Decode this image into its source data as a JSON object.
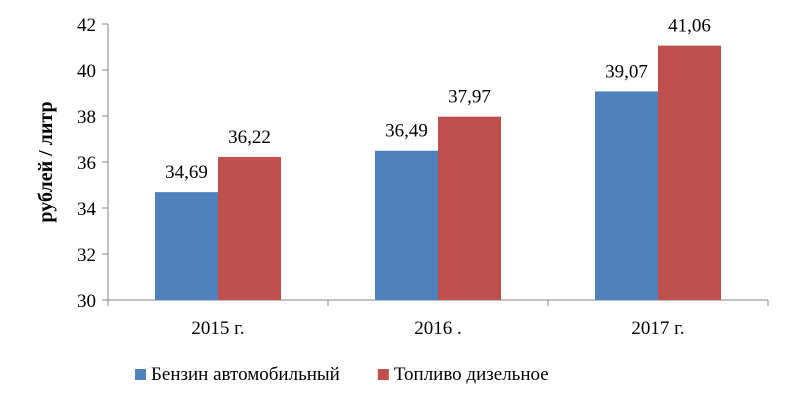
{
  "chart_data": {
    "type": "bar",
    "categories": [
      "2015 г.",
      "2016 .",
      "2017 г."
    ],
    "series": [
      {
        "name": "Бензин автомобильный",
        "values": [
          34.69,
          36.49,
          39.07
        ],
        "labels": [
          "34,69",
          "36,49",
          "39,07"
        ],
        "color": "#4f81bd"
      },
      {
        "name": "Топливо дизельное",
        "values": [
          36.22,
          37.97,
          41.06
        ],
        "labels": [
          "36,22",
          "37,97",
          "41,06"
        ],
        "color": "#c0504d"
      }
    ],
    "ylabel": "рублей / литр",
    "xlabel": "",
    "ylim": [
      30,
      42
    ],
    "yticks": [
      30,
      32,
      34,
      36,
      38,
      40,
      42
    ],
    "grid": false,
    "legend_position": "bottom"
  }
}
